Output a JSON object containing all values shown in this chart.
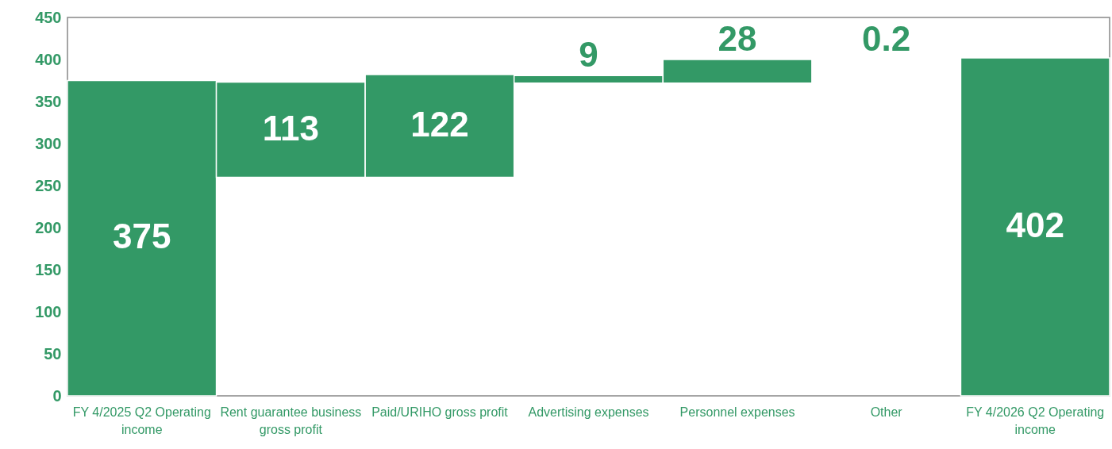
{
  "chart_data": {
    "type": "bar",
    "categories": [
      "FY 4/2025 Q2 Operating income",
      "Rent guarantee business gross profit",
      "Paid/URIHO gross profit",
      "Advertising expenses",
      "Personnel expenses",
      "Other",
      "FY 4/2026 Q2 Operating income"
    ],
    "values": [
      375,
      113,
      122,
      9,
      28,
      0.2,
      402
    ],
    "base": [
      0,
      260,
      260,
      372,
      372,
      400,
      0
    ],
    "color": "#339966",
    "ylim": [
      0,
      450
    ],
    "yticks": [
      0,
      50,
      100,
      150,
      200,
      250,
      300,
      350,
      400,
      450
    ],
    "grid": false,
    "data_labels": true
  }
}
